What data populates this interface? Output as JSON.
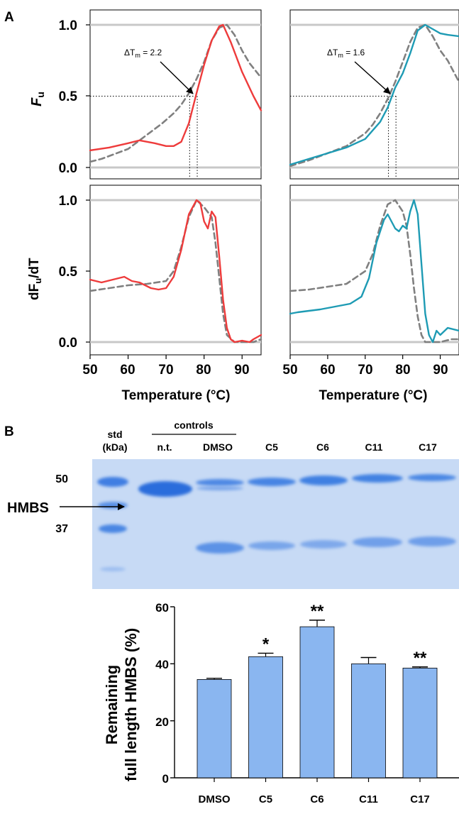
{
  "panel_a": {
    "letter": "A",
    "ylabel_top_main": "F",
    "ylabel_top_sub": "u",
    "ylabel_bottom_main": "dF",
    "ylabel_bottom_sub": "u",
    "ylabel_bottom_tail": "/dT",
    "xlabel": "Temperature (°C)",
    "y_ticks": [
      "1.0",
      "0.5",
      "0.0"
    ],
    "x_ticks": [
      "50",
      "60",
      "70",
      "80",
      "90"
    ],
    "annotations": [
      {
        "prefix": "ΔT",
        "sub": "m",
        "suffix": " = 2.2"
      },
      {
        "prefix": "ΔT",
        "sub": "m",
        "suffix": " = 1.6"
      }
    ]
  },
  "panel_b": {
    "letter": "B",
    "gel": {
      "std_label": "std",
      "std_unit": "(kDa)",
      "controls_label": "controls",
      "lanes": [
        "n.t.",
        "DMSO",
        "C5",
        "C6",
        "C11",
        "C17"
      ],
      "markers": [
        "50",
        "37"
      ],
      "band_label": "HMBS"
    },
    "bar_ylabel_line1": "Remaining",
    "bar_ylabel_line2": "full length HMBS  (%)",
    "bar_y_ticks": [
      "60",
      "40",
      "20",
      "0"
    ],
    "colors": {
      "bar": "#8ab6f0",
      "gel": "#c9dcf5",
      "band": "#3d7ae0"
    }
  },
  "chart_data": [
    {
      "type": "line",
      "panel": "A top-left",
      "ylabel": "Fu",
      "xlim": [
        50,
        95
      ],
      "ylim": [
        0,
        1
      ],
      "annotation": "ΔTm = 2.2",
      "colors": {
        "treated": "#ee3b3b",
        "control": "#808080"
      },
      "series": [
        {
          "style": "solid",
          "x": [
            50,
            55,
            60,
            63,
            67,
            70,
            72,
            74,
            76,
            78,
            80,
            82,
            84,
            85,
            87,
            90,
            93,
            95
          ],
          "y": [
            0.12,
            0.14,
            0.17,
            0.19,
            0.17,
            0.15,
            0.15,
            0.18,
            0.31,
            0.52,
            0.72,
            0.89,
            0.99,
            1.0,
            0.88,
            0.67,
            0.5,
            0.4
          ]
        },
        {
          "style": "dashed",
          "x": [
            50,
            53,
            56,
            60,
            63,
            66,
            69,
            72,
            74,
            76,
            78,
            80,
            82,
            84,
            86,
            88,
            90,
            92,
            95
          ],
          "y": [
            0.04,
            0.06,
            0.09,
            0.13,
            0.19,
            0.25,
            0.31,
            0.38,
            0.44,
            0.52,
            0.62,
            0.74,
            0.89,
            0.98,
            1.0,
            0.93,
            0.82,
            0.73,
            0.63
          ]
        }
      ]
    },
    {
      "type": "line",
      "panel": "A top-right",
      "ylabel": "Fu",
      "xlim": [
        50,
        95
      ],
      "ylim": [
        0,
        1
      ],
      "annotation": "ΔTm = 1.6",
      "colors": {
        "treated": "#1e9bb4",
        "control": "#808080"
      },
      "series": [
        {
          "style": "solid",
          "x": [
            50,
            55,
            60,
            65,
            70,
            72,
            74,
            76,
            78,
            80,
            82,
            84,
            86,
            88,
            90,
            92,
            95
          ],
          "y": [
            0.02,
            0.06,
            0.1,
            0.14,
            0.2,
            0.26,
            0.32,
            0.42,
            0.56,
            0.66,
            0.8,
            0.96,
            1.0,
            0.97,
            0.94,
            0.93,
            0.92
          ]
        },
        {
          "style": "dashed",
          "x": [
            50,
            55,
            60,
            65,
            70,
            72,
            74,
            76,
            78,
            80,
            82,
            84,
            86,
            88,
            90,
            92,
            95
          ],
          "y": [
            0.01,
            0.05,
            0.1,
            0.15,
            0.24,
            0.3,
            0.38,
            0.48,
            0.6,
            0.74,
            0.88,
            0.98,
            1.0,
            0.92,
            0.82,
            0.75,
            0.6
          ]
        }
      ]
    },
    {
      "type": "line",
      "panel": "A bottom-left",
      "ylabel": "dFu/dT",
      "xlabel": "Temperature (°C)",
      "xlim": [
        50,
        95
      ],
      "ylim": [
        0,
        1
      ],
      "colors": {
        "treated": "#ee3b3b",
        "control": "#808080"
      },
      "series": [
        {
          "style": "solid",
          "x": [
            50,
            53,
            56,
            59,
            61,
            63,
            66,
            68,
            70,
            72,
            74,
            76,
            78,
            79,
            80,
            81,
            82,
            83,
            84,
            85,
            86,
            87,
            88,
            90,
            92,
            93,
            95
          ],
          "y": [
            0.44,
            0.42,
            0.44,
            0.46,
            0.43,
            0.42,
            0.38,
            0.37,
            0.38,
            0.46,
            0.65,
            0.9,
            1.0,
            0.98,
            0.85,
            0.8,
            0.92,
            0.88,
            0.6,
            0.3,
            0.1,
            0.02,
            0.0,
            0.01,
            0.0,
            0.02,
            0.05
          ]
        },
        {
          "style": "dashed",
          "x": [
            50,
            55,
            60,
            65,
            70,
            72,
            74,
            76,
            78,
            80,
            82,
            83,
            84,
            85,
            86,
            88,
            90,
            93,
            95
          ],
          "y": [
            0.36,
            0.38,
            0.4,
            0.41,
            0.43,
            0.5,
            0.67,
            0.88,
            1.0,
            0.95,
            0.88,
            0.7,
            0.45,
            0.2,
            0.05,
            0.0,
            0.0,
            0.0,
            0.02
          ]
        }
      ]
    },
    {
      "type": "line",
      "panel": "A bottom-right",
      "ylabel": "dFu/dT",
      "xlabel": "Temperature (°C)",
      "xlim": [
        50,
        95
      ],
      "ylim": [
        0,
        1
      ],
      "colors": {
        "treated": "#1e9bb4",
        "control": "#808080"
      },
      "series": [
        {
          "style": "solid",
          "x": [
            50,
            52,
            55,
            58,
            62,
            66,
            69,
            71,
            73,
            75,
            76,
            77,
            78,
            79,
            80,
            81,
            82,
            83,
            84,
            85,
            86,
            87,
            88,
            89,
            90,
            92,
            95
          ],
          "y": [
            0.2,
            0.21,
            0.22,
            0.23,
            0.25,
            0.27,
            0.32,
            0.45,
            0.7,
            0.86,
            0.9,
            0.85,
            0.8,
            0.78,
            0.82,
            0.8,
            0.92,
            1.0,
            0.9,
            0.55,
            0.2,
            0.05,
            0.0,
            0.08,
            0.05,
            0.1,
            0.08
          ]
        },
        {
          "style": "dashed",
          "x": [
            50,
            55,
            60,
            65,
            70,
            72,
            74,
            76,
            78,
            80,
            81,
            82,
            83,
            84,
            85,
            86,
            88,
            90,
            93,
            95
          ],
          "y": [
            0.36,
            0.37,
            0.39,
            0.41,
            0.5,
            0.62,
            0.82,
            0.97,
            1.0,
            0.92,
            0.82,
            0.62,
            0.38,
            0.18,
            0.05,
            0.0,
            0.0,
            0.0,
            0.02,
            0.02
          ]
        }
      ]
    },
    {
      "type": "bar",
      "panel": "B bar chart",
      "categories": [
        "DMSO",
        "C5",
        "C6",
        "C11",
        "C17"
      ],
      "values": [
        34.5,
        42.5,
        53,
        40,
        38.5
      ],
      "errors": [
        0.4,
        1.2,
        2.3,
        2.2,
        0.4
      ],
      "significance": [
        "",
        "*",
        "**",
        "",
        "**"
      ],
      "ylabel": "Remaining full length HMBS  (%)",
      "ylim": [
        0,
        60
      ]
    }
  ]
}
